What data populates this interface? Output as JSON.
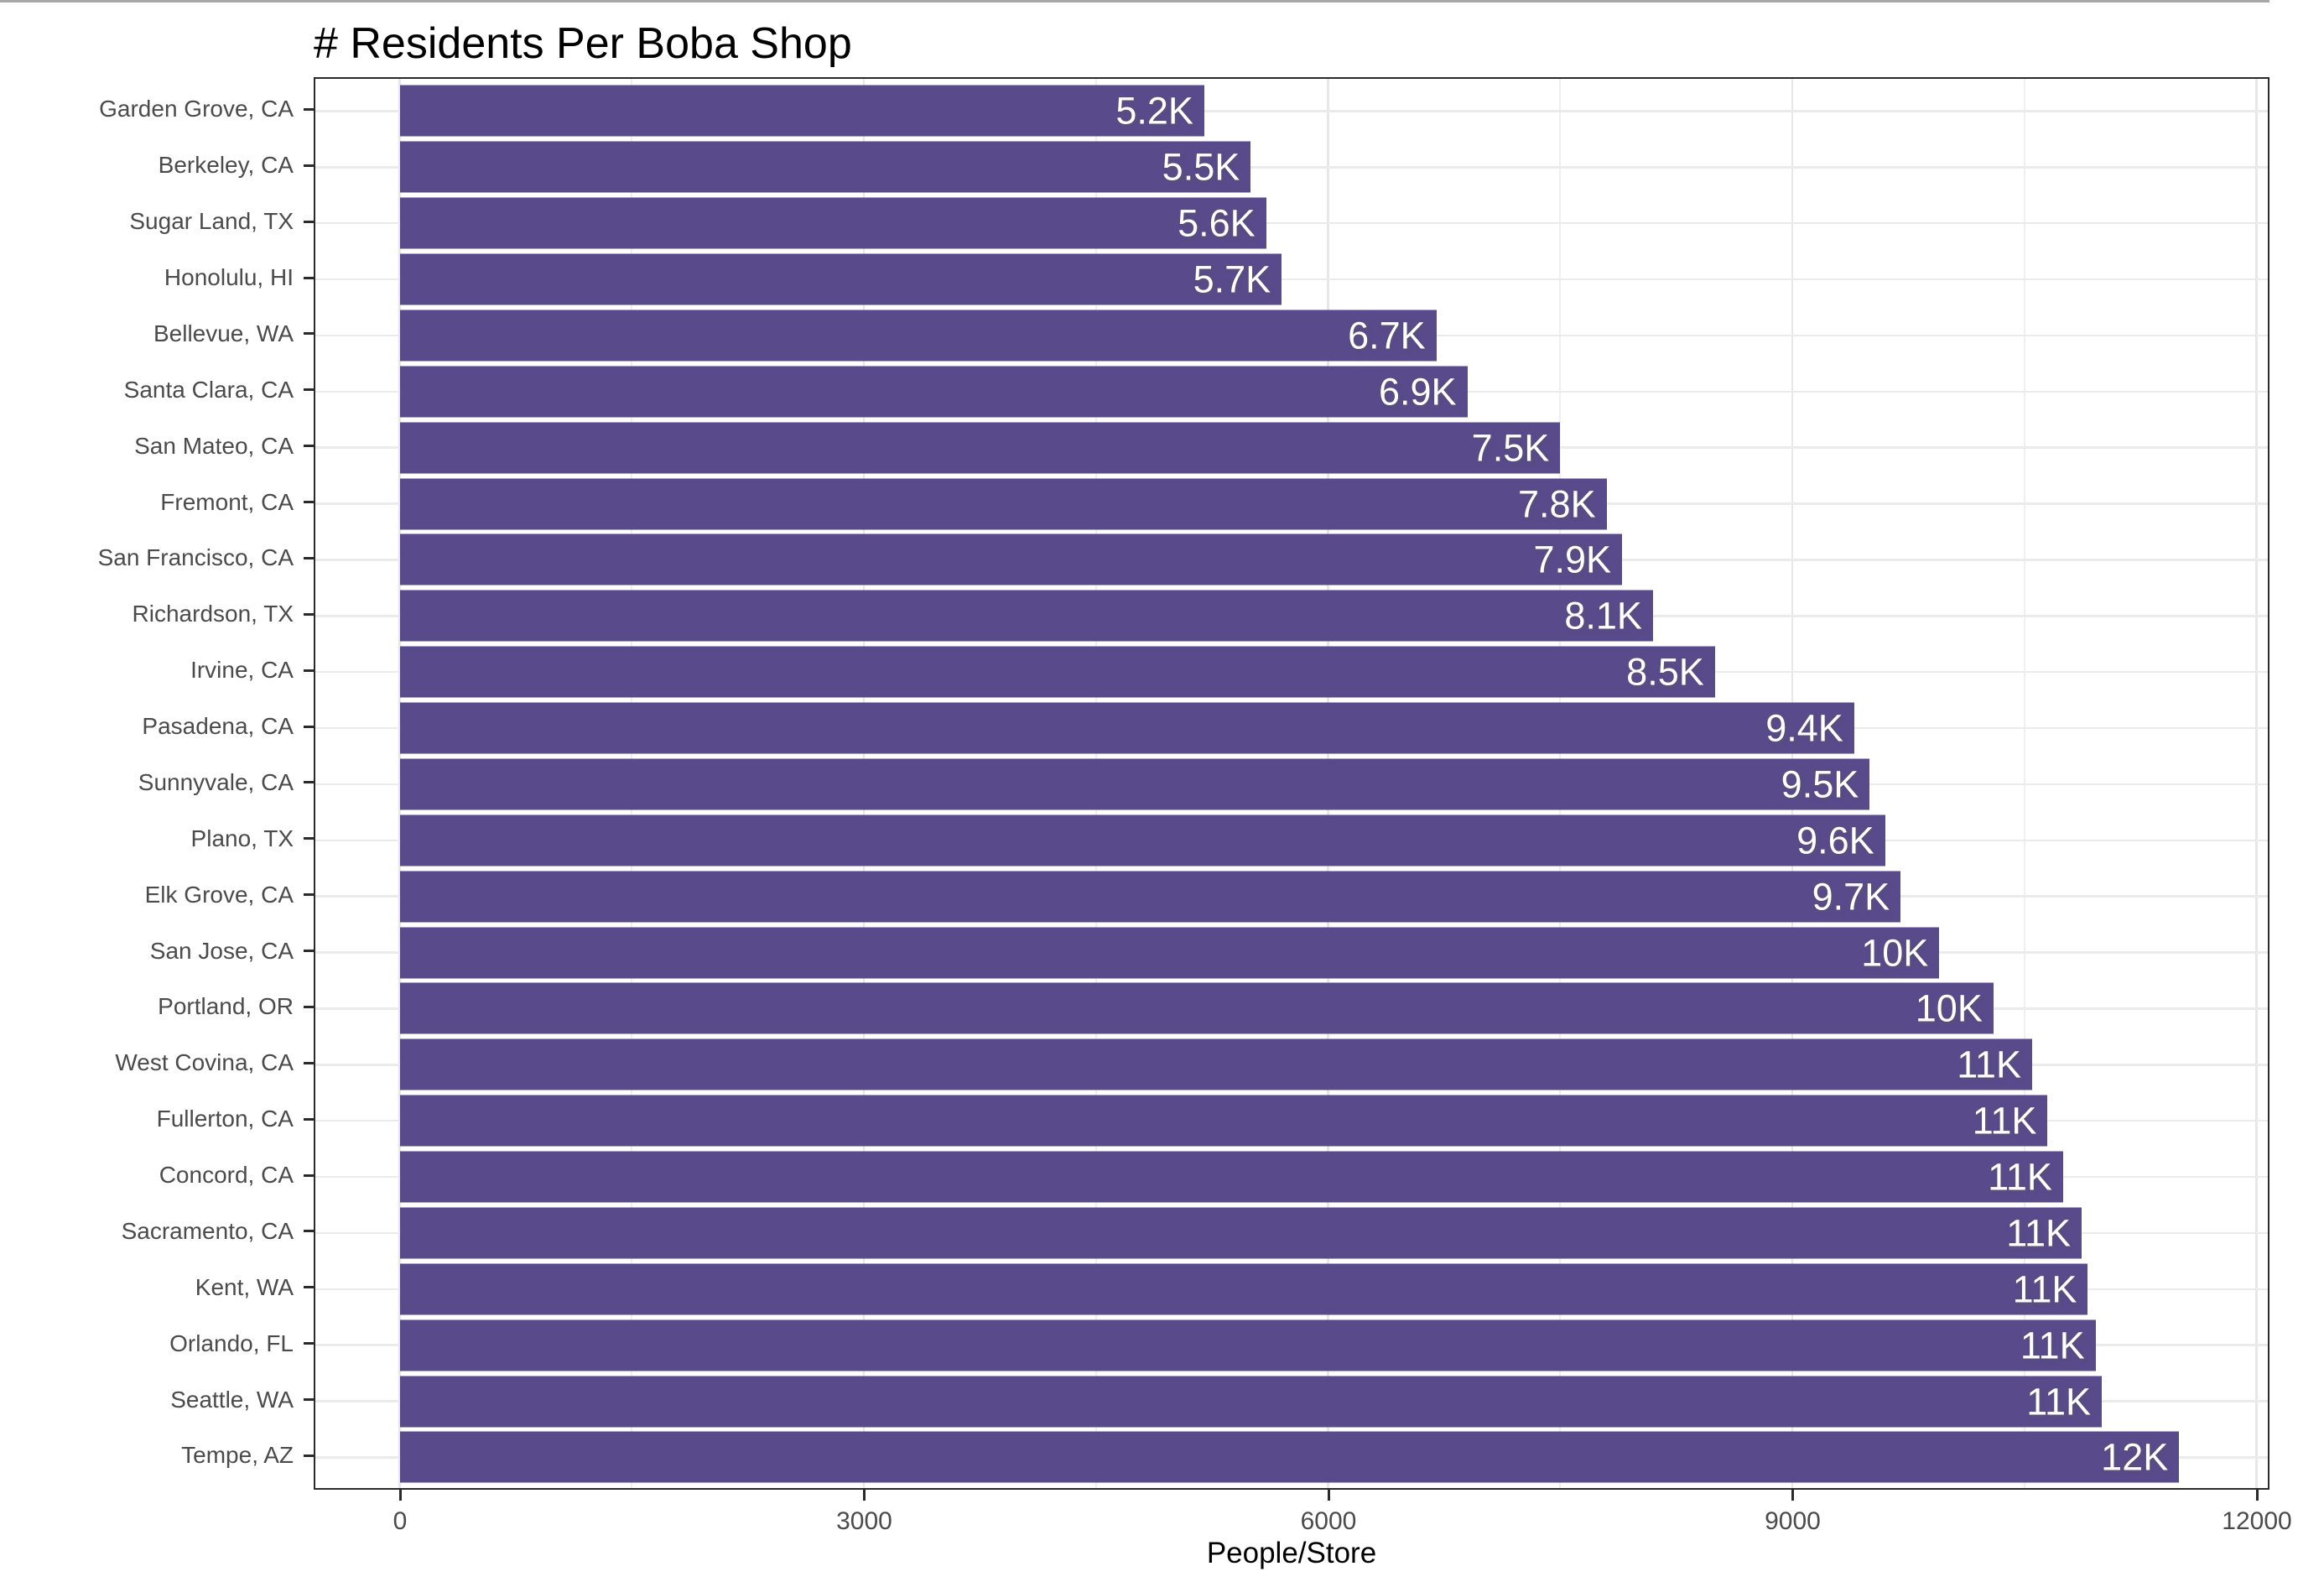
{
  "chart_data": {
    "type": "bar",
    "orientation": "horizontal",
    "title": "# Residents Per Boba Shop",
    "xlabel": "People/Store",
    "ylabel": "",
    "xlim": [
      0,
      12000
    ],
    "x_ticks": [
      0,
      3000,
      6000,
      9000,
      12000
    ],
    "x_tick_labels": [
      "0",
      "3000",
      "6000",
      "9000",
      "12000"
    ],
    "x_minor_ticks": [
      1500,
      4500,
      7500,
      10500
    ],
    "grid": "major and minor vertical gridlines, major horizontal gridline per category",
    "legend": "none",
    "bar_color": "#594a8b",
    "bar_label_color": "#ffffff",
    "categories": [
      "Garden Grove, CA",
      "Berkeley, CA",
      "Sugar Land, TX",
      "Honolulu, HI",
      "Bellevue, WA",
      "Santa Clara, CA",
      "San Mateo, CA",
      "Fremont, CA",
      "San Francisco, CA",
      "Richardson, TX",
      "Irvine, CA",
      "Pasadena, CA",
      "Sunnyvale, CA",
      "Plano, TX",
      "Elk Grove, CA",
      "San Jose, CA",
      "Portland, OR",
      "West Covina, CA",
      "Fullerton, CA",
      "Concord, CA",
      "Sacramento, CA",
      "Kent, WA",
      "Orlando, FL",
      "Seattle, WA",
      "Tempe, AZ"
    ],
    "values": [
      5200,
      5500,
      5600,
      5700,
      6700,
      6900,
      7500,
      7800,
      7900,
      8100,
      8500,
      9400,
      9500,
      9600,
      9700,
      9950,
      10300,
      10550,
      10650,
      10750,
      10870,
      10910,
      10960,
      11000,
      11500
    ],
    "bar_labels": [
      "5.2K",
      "5.5K",
      "5.6K",
      "5.7K",
      "6.7K",
      "6.9K",
      "7.5K",
      "7.8K",
      "7.9K",
      "8.1K",
      "8.5K",
      "9.4K",
      "9.5K",
      "9.6K",
      "9.7K",
      "10K",
      "10K",
      "11K",
      "11K",
      "11K",
      "11K",
      "11K",
      "11K",
      "11K",
      "12K"
    ]
  }
}
